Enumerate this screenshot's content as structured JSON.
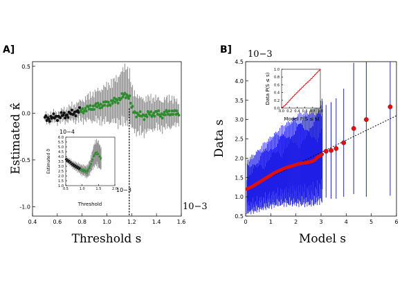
{
  "panels": {
    "a": {
      "letter": "A]"
    },
    "b": {
      "letter": "B]"
    }
  },
  "colors": {
    "a_errorbar": "#8c8c8c",
    "a_points_black": "#111111",
    "a_points_green": "#2e8b2e",
    "b_errorbar": "#1f1fe6",
    "b_points": "#dd1111",
    "inset_line": "#dd1111",
    "guide": "#000000"
  },
  "chart_data": [
    {
      "id": "A-main",
      "type": "scatter",
      "xlabel": "Threshold s",
      "ylabel": "Estimated κ̂",
      "xlim": [
        0.4,
        1.6
      ],
      "ylim": [
        -1.1,
        0.55
      ],
      "xticks": [
        "0.4",
        "0.6",
        "0.8",
        "1.0",
        "1.2",
        "1.4",
        "1.6"
      ],
      "yticks": [
        "0.5",
        "0.0",
        "-0.5",
        "-1.0"
      ],
      "x_scale_note": "10−3",
      "x_range": [
        0.5,
        1.58
      ],
      "vline_x": 1.18,
      "series": [
        {
          "x": [
            0.5,
            0.6,
            0.7,
            0.8,
            0.9,
            1.0,
            1.05,
            1.1,
            1.15,
            1.18,
            1.2,
            1.25,
            1.3,
            1.35,
            1.4,
            1.45,
            1.5,
            1.55,
            1.58
          ],
          "y": [
            -0.06,
            -0.04,
            -0.01,
            0.03,
            0.07,
            0.1,
            0.12,
            0.15,
            0.2,
            0.18,
            0.05,
            -0.02,
            -0.03,
            -0.01,
            0.0,
            -0.02,
            0.01,
            0.0,
            0.01
          ],
          "err": [
            0.04,
            0.05,
            0.07,
            0.1,
            0.14,
            0.18,
            0.2,
            0.24,
            0.28,
            0.26,
            0.2,
            0.18,
            0.17,
            0.16,
            0.15,
            0.14,
            0.15,
            0.13,
            0.1
          ]
        }
      ]
    },
    {
      "id": "A-inset",
      "type": "scatter",
      "xlabel": "Threshold",
      "ylabel": "Estimated σ̂",
      "xlim": [
        0.5,
        2.0
      ],
      "ylim": [
        1.0,
        6.0
      ],
      "xticks": [
        "0.5",
        "1.0",
        "1.5",
        "2.0"
      ],
      "yticks": [
        "6.0",
        "5.5",
        "5.0",
        "4.5",
        "4.0",
        "3.5",
        "3.0",
        "2.5",
        "2.0",
        "1.5",
        "1.0"
      ],
      "y_scale_note": "10−4",
      "x_scale_note": "10−3",
      "series": [
        {
          "x": [
            0.5,
            0.6,
            0.7,
            0.8,
            0.9,
            1.0,
            1.1,
            1.15,
            1.2,
            1.25,
            1.3,
            1.35,
            1.4,
            1.45,
            1.5,
            1.55,
            1.58
          ],
          "y": [
            3.7,
            3.5,
            3.2,
            3.0,
            2.8,
            2.6,
            2.5,
            2.4,
            2.7,
            3.0,
            3.5,
            4.0,
            4.3,
            4.4,
            4.2,
            3.9,
            3.8
          ],
          "err": [
            0.2,
            0.25,
            0.3,
            0.35,
            0.4,
            0.45,
            0.5,
            0.55,
            0.6,
            0.7,
            0.8,
            1.0,
            1.1,
            1.2,
            1.2,
            1.1,
            1.0
          ]
        }
      ]
    },
    {
      "id": "B-main",
      "type": "scatter",
      "xlabel": "Model s",
      "ylabel": "Data s",
      "xlim": [
        0,
        6
      ],
      "ylim": [
        0.5,
        4.5
      ],
      "xticks": [
        "0",
        "1",
        "2",
        "3",
        "4",
        "5",
        "6"
      ],
      "yticks": [
        "4.5",
        "4.0",
        "3.5",
        "3.0",
        "2.5",
        "2.0",
        "1.5",
        "1.0",
        "0.5"
      ],
      "y_scale_note": "10−3",
      "guide_line": {
        "x": [
          0,
          6
        ],
        "y": [
          1.2,
          3.1
        ]
      },
      "series": [
        {
          "x": [
            0.05,
            0.15,
            0.25,
            0.35,
            0.45,
            0.55,
            0.65,
            0.75,
            0.85,
            0.95,
            1.05,
            1.15,
            1.25,
            1.35,
            1.45,
            1.55,
            1.65,
            1.75,
            1.85,
            1.95,
            2.05,
            2.15,
            2.25,
            2.35,
            2.45,
            2.55,
            2.65,
            2.75,
            2.85,
            2.95,
            3.05,
            3.2,
            3.4,
            3.6,
            3.9,
            4.3,
            4.8,
            5.75
          ],
          "y": [
            1.2,
            1.23,
            1.26,
            1.3,
            1.34,
            1.38,
            1.42,
            1.46,
            1.5,
            1.54,
            1.58,
            1.62,
            1.65,
            1.68,
            1.71,
            1.74,
            1.76,
            1.78,
            1.8,
            1.82,
            1.84,
            1.86,
            1.87,
            1.88,
            1.89,
            1.9,
            1.92,
            1.95,
            2.02,
            2.06,
            2.1,
            2.18,
            2.2,
            2.25,
            2.4,
            2.77,
            3.0,
            3.33
          ],
          "err": [
            0.6,
            0.6,
            0.62,
            0.64,
            0.66,
            0.68,
            0.7,
            0.72,
            0.74,
            0.76,
            0.78,
            0.8,
            0.82,
            0.84,
            0.86,
            0.88,
            0.9,
            0.92,
            0.94,
            0.96,
            0.98,
            1.0,
            1.0,
            1.02,
            1.02,
            1.05,
            1.05,
            1.08,
            1.1,
            1.12,
            1.15,
            1.2,
            1.25,
            1.3,
            1.4,
            1.7,
            2.0,
            2.3
          ]
        }
      ]
    },
    {
      "id": "B-inset",
      "type": "line",
      "xlabel": "Model P(S ≤ s)",
      "ylabel": "Data P(S ≤ s)",
      "xlim": [
        0,
        1
      ],
      "ylim": [
        0,
        1
      ],
      "xticks": [
        "0.0",
        "0.2",
        "0.4",
        "0.6",
        "0.8",
        "1.0"
      ],
      "yticks": [
        "1.0",
        "0.8",
        "0.6",
        "0.4",
        "0.2",
        "0.0"
      ],
      "series": [
        {
          "x": [
            0.0,
            0.1,
            0.2,
            0.3,
            0.4,
            0.5,
            0.6,
            0.7,
            0.8,
            0.9,
            1.0
          ],
          "y": [
            0.0,
            0.08,
            0.19,
            0.3,
            0.4,
            0.5,
            0.6,
            0.69,
            0.79,
            0.9,
            1.0
          ]
        }
      ]
    }
  ]
}
